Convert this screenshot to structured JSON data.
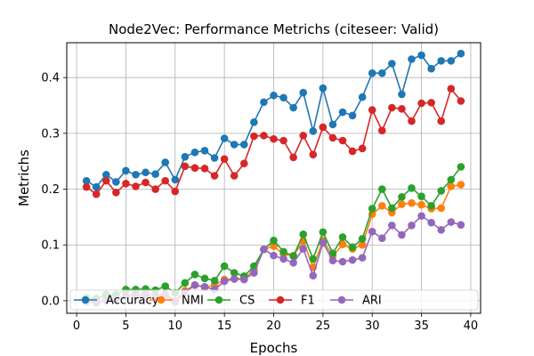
{
  "chart_data": {
    "type": "line",
    "title": "Node2Vec: Performance Metrichs (citeseer: Valid)",
    "xlabel": "Epochs",
    "ylabel": "Metrichs",
    "xlim": [
      -1.0,
      41.0
    ],
    "ylim": [
      -0.0225,
      0.4625
    ],
    "x_ticks": [
      0,
      5,
      10,
      15,
      20,
      25,
      30,
      35,
      40
    ],
    "y_ticks": [
      0.0,
      0.1,
      0.2,
      0.3,
      0.4
    ],
    "x_tick_labels": [
      "0",
      "5",
      "10",
      "15",
      "20",
      "25",
      "30",
      "35",
      "40"
    ],
    "y_tick_labels": [
      "0.0",
      "0.1",
      "0.2",
      "0.3",
      "0.4"
    ],
    "grid": true,
    "legend_position": "lower-center",
    "x": [
      1,
      2,
      3,
      4,
      5,
      6,
      7,
      8,
      9,
      10,
      11,
      12,
      13,
      14,
      15,
      16,
      17,
      18,
      19,
      20,
      21,
      22,
      23,
      24,
      25,
      26,
      27,
      28,
      29,
      30,
      31,
      32,
      33,
      34,
      35,
      36,
      37,
      38,
      39
    ],
    "series": [
      {
        "name": "Accuracy",
        "color": "#1f77b4",
        "values": [
          0.215,
          0.204,
          0.226,
          0.213,
          0.233,
          0.226,
          0.23,
          0.227,
          0.248,
          0.217,
          0.258,
          0.266,
          0.269,
          0.256,
          0.291,
          0.28,
          0.28,
          0.32,
          0.356,
          0.368,
          0.364,
          0.346,
          0.373,
          0.304,
          0.381,
          0.316,
          0.338,
          0.332,
          0.365,
          0.408,
          0.408,
          0.425,
          0.37,
          0.433,
          0.44,
          0.416,
          0.43,
          0.43,
          0.443
        ]
      },
      {
        "name": "NMI",
        "color": "#ff7f0e",
        "values": [
          -0.002,
          -0.003,
          0.002,
          0.003,
          0.01,
          0.012,
          0.013,
          0.01,
          0.012,
          0.0,
          0.018,
          0.028,
          0.024,
          0.028,
          0.038,
          0.039,
          0.04,
          0.055,
          0.092,
          0.098,
          0.083,
          0.081,
          0.107,
          0.06,
          0.108,
          0.08,
          0.101,
          0.093,
          0.1,
          0.155,
          0.17,
          0.158,
          0.173,
          0.175,
          0.172,
          0.165,
          0.166,
          0.205,
          0.208
        ]
      },
      {
        "name": "CS",
        "color": "#2ca02c",
        "values": [
          0.005,
          0.004,
          0.011,
          0.011,
          0.02,
          0.02,
          0.021,
          0.019,
          0.026,
          0.014,
          0.032,
          0.047,
          0.04,
          0.036,
          0.062,
          0.05,
          0.044,
          0.062,
          0.092,
          0.108,
          0.088,
          0.08,
          0.119,
          0.075,
          0.123,
          0.085,
          0.114,
          0.096,
          0.111,
          0.165,
          0.2,
          0.166,
          0.186,
          0.202,
          0.187,
          0.17,
          0.197,
          0.217,
          0.24
        ]
      },
      {
        "name": "F1",
        "color": "#d62728",
        "values": [
          0.204,
          0.191,
          0.215,
          0.194,
          0.21,
          0.205,
          0.212,
          0.2,
          0.215,
          0.196,
          0.241,
          0.238,
          0.237,
          0.224,
          0.254,
          0.224,
          0.246,
          0.295,
          0.296,
          0.29,
          0.287,
          0.257,
          0.296,
          0.262,
          0.311,
          0.292,
          0.287,
          0.268,
          0.273,
          0.342,
          0.305,
          0.346,
          0.344,
          0.322,
          0.354,
          0.355,
          0.322,
          0.38,
          0.358
        ]
      },
      {
        "name": "ARI",
        "color": "#9467bd",
        "values": [
          -0.002,
          -0.004,
          0.001,
          0.003,
          0.008,
          0.008,
          0.01,
          0.006,
          0.01,
          -0.002,
          0.015,
          0.028,
          0.025,
          0.02,
          0.035,
          0.039,
          0.038,
          0.05,
          0.092,
          0.081,
          0.075,
          0.068,
          0.093,
          0.045,
          0.104,
          0.072,
          0.07,
          0.073,
          0.077,
          0.124,
          0.112,
          0.135,
          0.118,
          0.135,
          0.152,
          0.14,
          0.127,
          0.141,
          0.136
        ]
      }
    ]
  }
}
